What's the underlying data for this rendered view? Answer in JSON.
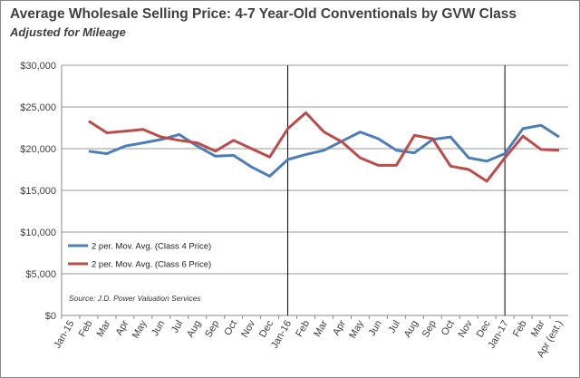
{
  "chart_data": {
    "type": "line",
    "title": "Average Wholesale Selling Price: 4-7 Year-Old Conventionals by GVW Class",
    "subtitle": "Adjusted for Mileage",
    "source": "Source: J.D. Power Valuation Services",
    "categories": [
      "Jan-15",
      "Feb",
      "Mar",
      "Apr",
      "May",
      "Jun",
      "Jul",
      "Aug",
      "Sep",
      "Oct",
      "Nov",
      "Dec",
      "Jan-16",
      "Feb",
      "Mar",
      "Apr",
      "May",
      "Jun",
      "Jul",
      "Aug",
      "Sep",
      "Oct",
      "Nov",
      "Dec",
      "Jan-17",
      "Feb",
      "Mar",
      "Apr (est.)"
    ],
    "yticks": [
      "$0",
      "$5,000",
      "$10,000",
      "$15,000",
      "$20,000",
      "$25,000",
      "$30,000"
    ],
    "ylim": [
      0,
      30000
    ],
    "grid": true,
    "legend_placement": "bottom-left",
    "year_dividers": [
      "Jan-16",
      "Jan-17"
    ],
    "series": [
      {
        "name": "2 per. Mov. Avg. (Class 4 Price)",
        "color": "#4a7ebb",
        "values": [
          null,
          19700,
          19400,
          20300,
          20700,
          21100,
          21700,
          20300,
          19100,
          19200,
          17800,
          16700,
          18700,
          19300,
          19800,
          20900,
          22000,
          21200,
          19800,
          19500,
          21100,
          21400,
          18900,
          18500,
          19400,
          22400,
          22800,
          21400
        ]
      },
      {
        "name": "2 per. Mov. Avg. (Class 6 Price)",
        "color": "#be4b48",
        "values": [
          null,
          23300,
          21900,
          22100,
          22300,
          21400,
          21000,
          20700,
          19700,
          21000,
          20000,
          19000,
          22400,
          24300,
          22000,
          20800,
          18900,
          18000,
          18000,
          21600,
          21200,
          17900,
          17500,
          16100,
          18900,
          21500,
          19900,
          19800
        ]
      }
    ]
  }
}
